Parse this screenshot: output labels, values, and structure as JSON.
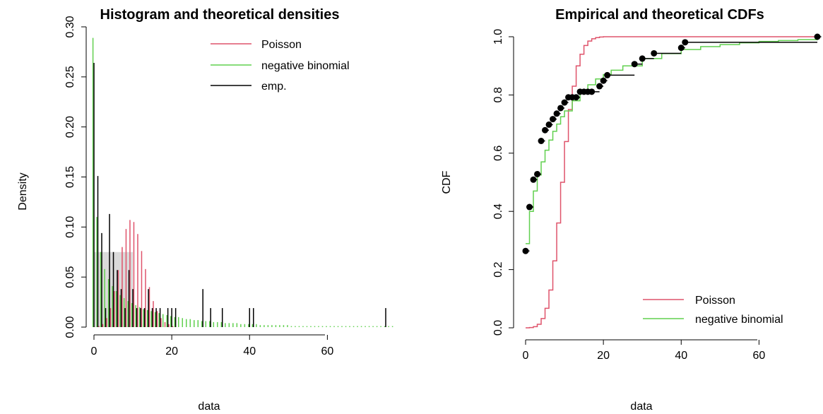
{
  "colors": {
    "poisson": "#DF536B",
    "negbin": "#61D04F",
    "empirical": "#000000",
    "hist_fill": "#D3D3D3"
  },
  "chart_data": [
    {
      "type": "bar",
      "title": "Histogram and theoretical densities",
      "xlabel": "data",
      "ylabel": "Density",
      "xlim": [
        0,
        78
      ],
      "ylim": [
        0,
        0.3
      ],
      "xticks": [
        "0",
        "20",
        "40",
        "60"
      ],
      "yticks": [
        "0.00",
        "0.05",
        "0.10",
        "0.15",
        "0.20",
        "0.25",
        "0.30"
      ],
      "legend_position": "top-right",
      "legend": [
        "Poisson",
        "negative binomial",
        "emp."
      ],
      "histogram": [
        {
          "x0": 0,
          "x1": 10,
          "density": 0.075
        }
      ],
      "series": [
        {
          "name": "Poisson",
          "x": [
            0,
            1,
            2,
            3,
            4,
            5,
            6,
            7,
            8,
            9,
            10,
            11,
            12,
            13,
            14,
            15,
            16,
            17,
            18,
            19,
            20
          ],
          "values": [
            0.0001,
            0.001,
            0.003,
            0.009,
            0.019,
            0.036,
            0.057,
            0.08,
            0.098,
            0.107,
            0.105,
            0.093,
            0.076,
            0.058,
            0.04,
            0.026,
            0.016,
            0.009,
            0.005,
            0.003,
            0.001
          ]
        },
        {
          "name": "negative binomial",
          "x": [
            0,
            1,
            2,
            3,
            4,
            5,
            6,
            7,
            8,
            9,
            10,
            11,
            12,
            13,
            14,
            15,
            16,
            17,
            18,
            19,
            20,
            21,
            22,
            23,
            24,
            25,
            26,
            27,
            28,
            29,
            30,
            31,
            32,
            33,
            34,
            35,
            36,
            37,
            38,
            39,
            40,
            41,
            42,
            43,
            44,
            45,
            46,
            47,
            48,
            49,
            50,
            51,
            52,
            53,
            54,
            55,
            56,
            57,
            58,
            59,
            60,
            61,
            62,
            63,
            64,
            65,
            66,
            67,
            68,
            69,
            70,
            71,
            72,
            73,
            74,
            75,
            76,
            77
          ],
          "values": [
            0.289,
            0.11,
            0.075,
            0.058,
            0.048,
            0.041,
            0.036,
            0.032,
            0.029,
            0.026,
            0.024,
            0.022,
            0.02,
            0.018,
            0.017,
            0.016,
            0.015,
            0.014,
            0.013,
            0.012,
            0.011,
            0.01,
            0.01,
            0.009,
            0.008,
            0.008,
            0.007,
            0.007,
            0.006,
            0.006,
            0.006,
            0.005,
            0.005,
            0.005,
            0.004,
            0.004,
            0.004,
            0.004,
            0.003,
            0.003,
            0.003,
            0.003,
            0.003,
            0.002,
            0.002,
            0.002,
            0.002,
            0.002,
            0.002,
            0.002,
            0.002,
            0.001,
            0.001,
            0.001,
            0.001,
            0.001,
            0.001,
            0.001,
            0.001,
            0.001,
            0.001,
            0.001,
            0.001,
            0.001,
            0.001,
            0.001,
            0.001,
            0.001,
            0.001,
            0.001,
            0.001,
            0.001,
            0.001,
            0.001,
            0.001,
            0.001,
            0.001,
            0.001
          ]
        },
        {
          "name": "emp.",
          "x": [
            0,
            1,
            2,
            3,
            4,
            5,
            6,
            7,
            8,
            9,
            10,
            11,
            12,
            13,
            14,
            15,
            16,
            17,
            19,
            20,
            21,
            28,
            30,
            33,
            40,
            41,
            75
          ],
          "values": [
            0.264,
            0.151,
            0.094,
            0.019,
            0.113,
            0.075,
            0.057,
            0.038,
            0.019,
            0.057,
            0.038,
            0.019,
            0.019,
            0.019,
            0.038,
            0.019,
            0.019,
            0.019,
            0.019,
            0.019,
            0.019,
            0.038,
            0.019,
            0.019,
            0.019,
            0.019,
            0.019
          ]
        }
      ]
    },
    {
      "type": "line",
      "title": "Empirical and theoretical CDFs",
      "xlabel": "data",
      "ylabel": "CDF",
      "xlim": [
        0,
        75
      ],
      "ylim": [
        0,
        1
      ],
      "xticks": [
        "0",
        "20",
        "40",
        "60"
      ],
      "yticks": [
        "0.0",
        "0.2",
        "0.4",
        "0.6",
        "0.8",
        "1.0"
      ],
      "legend_position": "bottom-right",
      "legend": [
        "Poisson",
        "negative binomial"
      ],
      "series": [
        {
          "name": "Poisson",
          "x": [
            0,
            1,
            2,
            3,
            4,
            5,
            6,
            7,
            8,
            9,
            10,
            11,
            12,
            13,
            14,
            15,
            16,
            17,
            18,
            19,
            20,
            25,
            75
          ],
          "values": [
            0.0,
            0.001,
            0.004,
            0.012,
            0.032,
            0.067,
            0.13,
            0.23,
            0.36,
            0.5,
            0.64,
            0.75,
            0.83,
            0.9,
            0.94,
            0.97,
            0.985,
            0.993,
            0.997,
            0.999,
            1.0,
            1.0,
            1.0
          ]
        },
        {
          "name": "negative binomial",
          "x": [
            0,
            1,
            2,
            3,
            4,
            5,
            6,
            7,
            8,
            9,
            10,
            12,
            14,
            16,
            18,
            20,
            22,
            25,
            30,
            35,
            40,
            45,
            50,
            55,
            60,
            65,
            70,
            75
          ],
          "values": [
            0.289,
            0.4,
            0.47,
            0.525,
            0.57,
            0.61,
            0.645,
            0.675,
            0.7,
            0.725,
            0.745,
            0.78,
            0.81,
            0.835,
            0.855,
            0.87,
            0.885,
            0.9,
            0.925,
            0.942,
            0.956,
            0.966,
            0.973,
            0.979,
            0.984,
            0.987,
            0.99,
            0.992
          ]
        },
        {
          "name": "empirical",
          "x": [
            0,
            1,
            2,
            3,
            4,
            5,
            6,
            7,
            8,
            9,
            10,
            11,
            12,
            13,
            14,
            15,
            16,
            17,
            19,
            20,
            21,
            28,
            30,
            33,
            40,
            41,
            75
          ],
          "values": [
            0.264,
            0.415,
            0.509,
            0.528,
            0.642,
            0.679,
            0.698,
            0.717,
            0.736,
            0.755,
            0.774,
            0.792,
            0.792,
            0.792,
            0.811,
            0.811,
            0.811,
            0.811,
            0.83,
            0.849,
            0.868,
            0.906,
            0.925,
            0.943,
            0.962,
            0.981,
            1.0
          ]
        }
      ]
    }
  ]
}
